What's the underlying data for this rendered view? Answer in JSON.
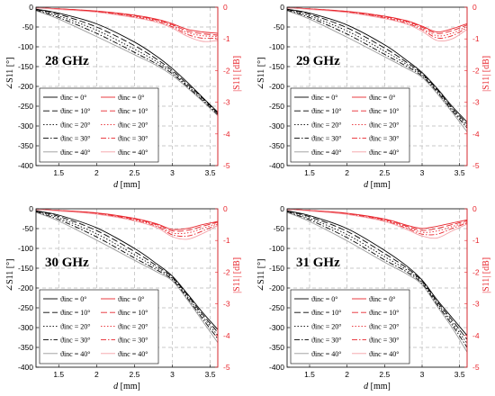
{
  "legend_entries": [
    "ϑinc = 0°",
    "ϑinc = 10°",
    "ϑinc = 20°",
    "ϑinc = 30°",
    "ϑinc = 40°"
  ],
  "colors": {
    "phase": "#000000",
    "magnitude": "#e8262d",
    "grid": "#b8b8b8"
  },
  "chart_data": [
    {
      "type": "line",
      "title": "28 GHz",
      "xlabel": "d [mm]",
      "ylabel_left": "∠S11 [°]",
      "ylabel_right": "|S11| [dB]",
      "xlim": [
        1.2,
        3.6
      ],
      "ylim_left": [
        -400,
        0
      ],
      "ylim_right": [
        -5,
        0
      ],
      "xticks": [
        1.5,
        2,
        2.5,
        3,
        3.5
      ],
      "yticks_left": [
        0,
        -50,
        -100,
        -150,
        -200,
        -250,
        -300,
        -350,
        -400
      ],
      "yticks_right": [
        0,
        -1,
        -2,
        -3,
        -4,
        -5
      ],
      "grid": true,
      "legend": "bottom-left",
      "x": [
        1.2,
        1.5,
        2.0,
        2.5,
        2.8,
        3.0,
        3.2,
        3.4,
        3.6
      ],
      "phase_series": [
        {
          "name": "ϑinc = 0°",
          "values": [
            -5,
            -15,
            -42,
            -88,
            -125,
            -155,
            -190,
            -228,
            -265
          ]
        },
        {
          "name": "ϑinc = 10°",
          "values": [
            -6,
            -18,
            -50,
            -97,
            -132,
            -160,
            -194,
            -230,
            -268
          ]
        },
        {
          "name": "ϑinc = 20°",
          "values": [
            -7,
            -22,
            -58,
            -106,
            -138,
            -164,
            -198,
            -233,
            -270
          ]
        },
        {
          "name": "ϑinc = 30°",
          "values": [
            -8,
            -26,
            -66,
            -114,
            -144,
            -168,
            -201,
            -236,
            -272
          ]
        },
        {
          "name": "ϑinc = 40°",
          "values": [
            -9,
            -30,
            -74,
            -120,
            -148,
            -172,
            -204,
            -238,
            -274
          ]
        }
      ],
      "mag_series": [
        {
          "name": "ϑinc = 0°",
          "values": [
            -0.02,
            -0.05,
            -0.12,
            -0.25,
            -0.38,
            -0.52,
            -0.7,
            -0.78,
            -0.82
          ]
        },
        {
          "name": "ϑinc = 10°",
          "values": [
            -0.02,
            -0.05,
            -0.13,
            -0.27,
            -0.4,
            -0.55,
            -0.75,
            -0.84,
            -0.88
          ]
        },
        {
          "name": "ϑinc = 20°",
          "values": [
            -0.02,
            -0.06,
            -0.14,
            -0.29,
            -0.42,
            -0.58,
            -0.8,
            -0.9,
            -0.92
          ]
        },
        {
          "name": "ϑinc = 30°",
          "values": [
            -0.02,
            -0.06,
            -0.15,
            -0.31,
            -0.45,
            -0.62,
            -0.86,
            -0.98,
            -0.97
          ]
        },
        {
          "name": "ϑinc = 40°",
          "values": [
            -0.02,
            -0.07,
            -0.16,
            -0.33,
            -0.48,
            -0.66,
            -0.92,
            -1.08,
            -1.05
          ]
        }
      ]
    },
    {
      "type": "line",
      "title": "29 GHz",
      "xlabel": "d [mm]",
      "ylabel_left": "∠S11 [°]",
      "ylabel_right": "|S11| [dB]",
      "xlim": [
        1.2,
        3.6
      ],
      "ylim_left": [
        -400,
        0
      ],
      "ylim_right": [
        -5,
        0
      ],
      "xticks": [
        1.5,
        2,
        2.5,
        3,
        3.5
      ],
      "yticks_left": [
        0,
        -50,
        -100,
        -150,
        -200,
        -250,
        -300,
        -350,
        -400
      ],
      "yticks_right": [
        0,
        -1,
        -2,
        -3,
        -4,
        -5
      ],
      "grid": true,
      "legend": "bottom-left",
      "x": [
        1.2,
        1.5,
        2.0,
        2.5,
        2.8,
        3.0,
        3.2,
        3.4,
        3.6
      ],
      "phase_series": [
        {
          "name": "ϑinc = 0°",
          "values": [
            -5,
            -15,
            -45,
            -95,
            -135,
            -165,
            -205,
            -250,
            -290
          ]
        },
        {
          "name": "ϑinc = 10°",
          "values": [
            -6,
            -18,
            -52,
            -103,
            -140,
            -168,
            -208,
            -254,
            -295
          ]
        },
        {
          "name": "ϑinc = 20°",
          "values": [
            -7,
            -22,
            -60,
            -111,
            -145,
            -171,
            -211,
            -257,
            -300
          ]
        },
        {
          "name": "ϑinc = 30°",
          "values": [
            -8,
            -26,
            -68,
            -119,
            -150,
            -174,
            -214,
            -261,
            -305
          ]
        },
        {
          "name": "ϑinc = 40°",
          "values": [
            -9,
            -30,
            -76,
            -125,
            -155,
            -177,
            -218,
            -265,
            -315
          ]
        }
      ],
      "mag_series": [
        {
          "name": "ϑinc = 0°",
          "values": [
            -0.02,
            -0.05,
            -0.13,
            -0.28,
            -0.43,
            -0.6,
            -0.78,
            -0.68,
            -0.52
          ]
        },
        {
          "name": "ϑinc = 10°",
          "values": [
            -0.02,
            -0.05,
            -0.14,
            -0.3,
            -0.45,
            -0.63,
            -0.83,
            -0.74,
            -0.56
          ]
        },
        {
          "name": "ϑinc = 20°",
          "values": [
            -0.02,
            -0.06,
            -0.15,
            -0.32,
            -0.48,
            -0.67,
            -0.9,
            -0.82,
            -0.6
          ]
        },
        {
          "name": "ϑinc = 30°",
          "values": [
            -0.02,
            -0.06,
            -0.16,
            -0.34,
            -0.51,
            -0.71,
            -0.97,
            -0.9,
            -0.64
          ]
        },
        {
          "name": "ϑinc = 40°",
          "values": [
            -0.02,
            -0.07,
            -0.17,
            -0.36,
            -0.54,
            -0.76,
            -1.05,
            -1.0,
            -0.7
          ]
        }
      ]
    },
    {
      "type": "line",
      "title": "30 GHz",
      "xlabel": "d [mm]",
      "ylabel_left": "∠S11 [°]",
      "ylabel_right": "|S11| [dB]",
      "xlim": [
        1.2,
        3.6
      ],
      "ylim_left": [
        -400,
        0
      ],
      "ylim_right": [
        -5,
        0
      ],
      "xticks": [
        1.5,
        2,
        2.5,
        3,
        3.5
      ],
      "yticks_left": [
        0,
        -50,
        -100,
        -150,
        -200,
        -250,
        -300,
        -350,
        -400
      ],
      "yticks_right": [
        0,
        -1,
        -2,
        -3,
        -4,
        -5
      ],
      "grid": true,
      "legend": "bottom-left",
      "x": [
        1.2,
        1.5,
        2.0,
        2.5,
        2.8,
        3.0,
        3.2,
        3.4,
        3.6
      ],
      "phase_series": [
        {
          "name": "ϑinc = 0°",
          "values": [
            -5,
            -16,
            -48,
            -100,
            -140,
            -170,
            -215,
            -262,
            -305
          ]
        },
        {
          "name": "ϑinc = 10°",
          "values": [
            -6,
            -19,
            -55,
            -108,
            -145,
            -173,
            -218,
            -267,
            -312
          ]
        },
        {
          "name": "ϑinc = 20°",
          "values": [
            -7,
            -23,
            -63,
            -116,
            -150,
            -176,
            -222,
            -272,
            -320
          ]
        },
        {
          "name": "ϑinc = 30°",
          "values": [
            -8,
            -27,
            -71,
            -124,
            -155,
            -179,
            -226,
            -278,
            -328
          ]
        },
        {
          "name": "ϑinc = 40°",
          "values": [
            -9,
            -31,
            -79,
            -130,
            -160,
            -182,
            -230,
            -284,
            -338
          ]
        }
      ],
      "mag_series": [
        {
          "name": "ϑinc = 0°",
          "values": [
            -0.02,
            -0.05,
            -0.13,
            -0.3,
            -0.48,
            -0.65,
            -0.62,
            -0.5,
            -0.4
          ]
        },
        {
          "name": "ϑinc = 10°",
          "values": [
            -0.02,
            -0.05,
            -0.14,
            -0.32,
            -0.5,
            -0.7,
            -0.68,
            -0.55,
            -0.42
          ]
        },
        {
          "name": "ϑinc = 20°",
          "values": [
            -0.02,
            -0.06,
            -0.15,
            -0.34,
            -0.53,
            -0.76,
            -0.76,
            -0.62,
            -0.45
          ]
        },
        {
          "name": "ϑinc = 30°",
          "values": [
            -0.02,
            -0.06,
            -0.16,
            -0.36,
            -0.56,
            -0.82,
            -0.86,
            -0.7,
            -0.48
          ]
        },
        {
          "name": "ϑinc = 40°",
          "values": [
            -0.02,
            -0.07,
            -0.17,
            -0.38,
            -0.6,
            -0.88,
            -0.96,
            -0.78,
            -0.52
          ]
        }
      ]
    },
    {
      "type": "line",
      "title": "31 GHz",
      "xlabel": "d [mm]",
      "ylabel_left": "∠S11 [°]",
      "ylabel_right": "|S11| [dB]",
      "xlim": [
        1.2,
        3.6
      ],
      "ylim_left": [
        -400,
        0
      ],
      "ylim_right": [
        -5,
        0
      ],
      "xticks": [
        1.5,
        2,
        2.5,
        3,
        3.5
      ],
      "yticks_left": [
        0,
        -50,
        -100,
        -150,
        -200,
        -250,
        -300,
        -350,
        -400
      ],
      "yticks_right": [
        0,
        -1,
        -2,
        -3,
        -4,
        -5
      ],
      "grid": true,
      "legend": "bottom-left",
      "x": [
        1.2,
        1.5,
        2.0,
        2.5,
        2.8,
        3.0,
        3.2,
        3.4,
        3.6
      ],
      "phase_series": [
        {
          "name": "ϑinc = 0°",
          "values": [
            -5,
            -17,
            -50,
            -105,
            -145,
            -180,
            -230,
            -275,
            -320
          ]
        },
        {
          "name": "ϑinc = 10°",
          "values": [
            -6,
            -20,
            -57,
            -113,
            -150,
            -183,
            -234,
            -281,
            -330
          ]
        },
        {
          "name": "ϑinc = 20°",
          "values": [
            -7,
            -24,
            -65,
            -121,
            -155,
            -186,
            -238,
            -287,
            -340
          ]
        },
        {
          "name": "ϑinc = 30°",
          "values": [
            -8,
            -28,
            -73,
            -129,
            -160,
            -189,
            -242,
            -293,
            -350
          ]
        },
        {
          "name": "ϑinc = 40°",
          "values": [
            -9,
            -32,
            -81,
            -135,
            -165,
            -192,
            -246,
            -300,
            -362
          ]
        }
      ],
      "mag_series": [
        {
          "name": "ϑinc = 0°",
          "values": [
            -0.02,
            -0.05,
            -0.14,
            -0.32,
            -0.52,
            -0.62,
            -0.55,
            -0.45,
            -0.35
          ]
        },
        {
          "name": "ϑinc = 10°",
          "values": [
            -0.02,
            -0.05,
            -0.15,
            -0.34,
            -0.55,
            -0.68,
            -0.62,
            -0.5,
            -0.38
          ]
        },
        {
          "name": "ϑinc = 20°",
          "values": [
            -0.02,
            -0.06,
            -0.16,
            -0.36,
            -0.58,
            -0.74,
            -0.7,
            -0.56,
            -0.42
          ]
        },
        {
          "name": "ϑinc = 30°",
          "values": [
            -0.02,
            -0.06,
            -0.17,
            -0.38,
            -0.62,
            -0.8,
            -0.8,
            -0.62,
            -0.45
          ]
        },
        {
          "name": "ϑinc = 40°",
          "values": [
            -0.02,
            -0.07,
            -0.18,
            -0.4,
            -0.66,
            -0.86,
            -0.92,
            -0.7,
            -0.48
          ]
        }
      ]
    }
  ]
}
